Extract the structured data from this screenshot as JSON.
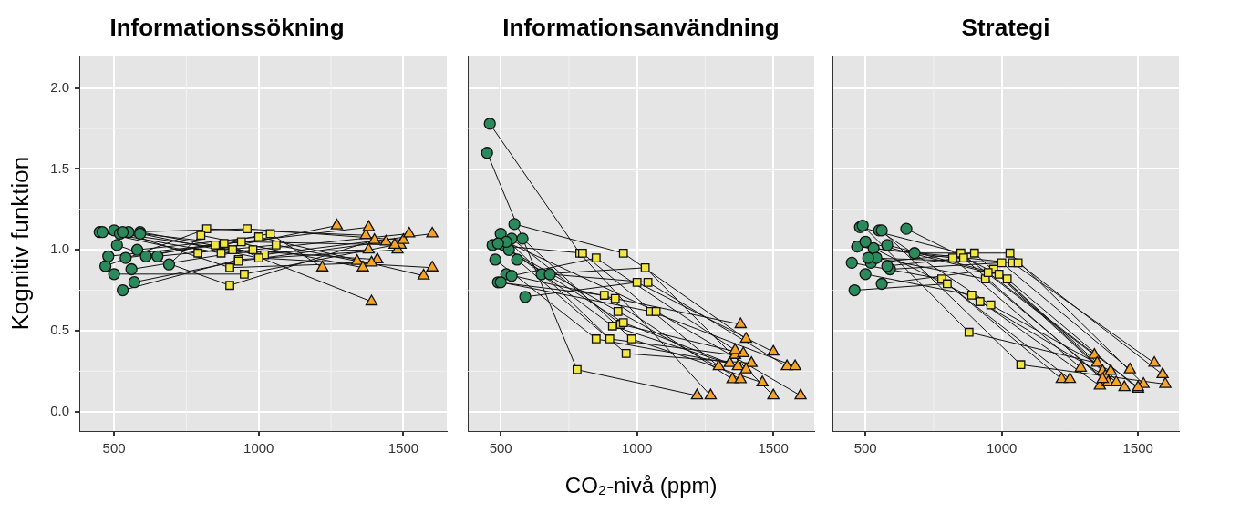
{
  "chart_data": [
    {
      "type": "scatter",
      "title": "Informationssökning",
      "ylabel": "Kognitiv funktion",
      "xlim": [
        380,
        1650
      ],
      "xticks": [
        500,
        1000,
        1500
      ],
      "ylim": [
        -0.12,
        2.2
      ],
      "yticks": [
        {
          "value": 0,
          "label": "0.0"
        },
        0.5,
        {
          "value": 1,
          "label": "1.0"
        },
        1.5,
        {
          "value": 2,
          "label": "2.0"
        }
      ],
      "grid": true,
      "series": [
        {
          "color": "#2a8a5c",
          "marker": "circle",
          "x": [
            450,
            470,
            480,
            500,
            510,
            520,
            530,
            540,
            550,
            560,
            580,
            590,
            610,
            650,
            690,
            460,
            500,
            530,
            570,
            590
          ],
          "y": [
            1.11,
            0.9,
            0.96,
            1.12,
            1.03,
            1.1,
            0.75,
            0.95,
            1.11,
            0.88,
            1.0,
            1.11,
            0.96,
            0.96,
            0.91,
            1.11,
            0.85,
            1.11,
            0.8,
            1.1
          ]
        },
        {
          "color": "#f2e640",
          "marker": "square",
          "x": [
            790,
            820,
            850,
            880,
            900,
            910,
            930,
            940,
            960,
            980,
            1000,
            1020,
            1040,
            1060,
            800,
            870,
            950,
            900,
            930,
            1000
          ],
          "y": [
            0.98,
            1.13,
            1.03,
            1.04,
            0.78,
            1.0,
            0.94,
            1.05,
            1.13,
            1.0,
            1.08,
            0.97,
            1.1,
            1.03,
            1.09,
            0.98,
            0.85,
            0.89,
            0.93,
            0.95
          ]
        },
        {
          "color": "#f5a42a",
          "marker": "triangle",
          "x": [
            1270,
            1370,
            1380,
            1390,
            1400,
            1410,
            1480,
            1490,
            1500,
            1520,
            1570,
            1600,
            1220,
            1340,
            1360,
            1380,
            1470,
            1390,
            1440,
            1600
          ],
          "y": [
            1.15,
            1.09,
            1.14,
            0.68,
            1.06,
            0.94,
            1.0,
            1.03,
            1.06,
            1.1,
            0.84,
            1.1,
            0.89,
            0.93,
            0.89,
            1.0,
            1.03,
            0.92,
            1.05,
            0.89
          ]
        }
      ]
    },
    {
      "type": "scatter",
      "title": "Informationsanvändning",
      "xlabel": "CO₂-nivå (ppm)",
      "xlim": [
        380,
        1650
      ],
      "xticks": [
        500,
        1000,
        1500
      ],
      "ylim": [
        -0.12,
        2.2
      ],
      "yticks": [
        {
          "value": 0,
          "label": "0.0"
        },
        0.5,
        {
          "value": 1,
          "label": "1.0"
        },
        1.5,
        {
          "value": 2,
          "label": "2.0"
        }
      ],
      "grid": true,
      "tick_labels": "x",
      "series": [
        {
          "color": "#2a8a5c",
          "marker": "circle",
          "x": [
            450,
            460,
            470,
            480,
            490,
            500,
            510,
            520,
            530,
            540,
            550,
            560,
            580,
            590,
            650,
            680,
            500,
            520,
            540,
            490
          ],
          "y": [
            1.6,
            1.78,
            1.03,
            0.94,
            0.8,
            1.1,
            1.03,
            0.85,
            1.0,
            1.07,
            1.16,
            0.94,
            1.07,
            0.71,
            0.85,
            0.85,
            0.8,
            1.05,
            0.84,
            1.04
          ]
        },
        {
          "color": "#f2e640",
          "marker": "square",
          "x": [
            780,
            790,
            800,
            850,
            880,
            900,
            910,
            920,
            930,
            940,
            950,
            960,
            980,
            1000,
            1030,
            1040,
            1050,
            1070,
            850,
            950
          ],
          "y": [
            0.26,
            0.98,
            0.98,
            0.45,
            0.72,
            0.45,
            0.53,
            0.7,
            0.62,
            0.54,
            0.98,
            0.36,
            0.45,
            0.8,
            0.89,
            0.8,
            0.62,
            0.62,
            0.95,
            0.55
          ]
        },
        {
          "color": "#f5a42a",
          "marker": "triangle",
          "x": [
            1220,
            1270,
            1300,
            1340,
            1350,
            1360,
            1370,
            1380,
            1380,
            1390,
            1400,
            1420,
            1460,
            1500,
            1500,
            1550,
            1580,
            1600,
            1360,
            1400
          ],
          "y": [
            0.1,
            0.1,
            0.28,
            0.3,
            0.2,
            0.35,
            0.28,
            0.54,
            0.2,
            0.36,
            0.45,
            0.3,
            0.18,
            0.37,
            0.1,
            0.28,
            0.28,
            0.1,
            0.38,
            0.26
          ]
        }
      ]
    },
    {
      "type": "scatter",
      "title": "Strategi",
      "xlim": [
        380,
        1650
      ],
      "xticks": [
        500,
        1000,
        1500
      ],
      "ylim": [
        -0.12,
        2.2
      ],
      "yticks": [
        {
          "value": 0,
          "label": "0.0"
        },
        0.5,
        {
          "value": 1,
          "label": "1.0"
        },
        1.5,
        {
          "value": 2,
          "label": "2.0"
        }
      ],
      "grid": true,
      "tick_labels": "x",
      "series": [
        {
          "color": "#2a8a5c",
          "marker": "circle",
          "x": [
            450,
            460,
            470,
            480,
            490,
            500,
            520,
            530,
            540,
            550,
            560,
            580,
            590,
            650,
            680,
            470,
            510,
            560,
            580,
            500
          ],
          "y": [
            0.92,
            0.75,
            1.02,
            1.14,
            1.15,
            0.85,
            0.92,
            1.01,
            0.95,
            1.12,
            0.79,
            1.03,
            0.88,
            1.13,
            0.98,
            1.02,
            0.95,
            1.12,
            0.9,
            1.05
          ]
        },
        {
          "color": "#f2e640",
          "marker": "square",
          "x": [
            780,
            800,
            820,
            850,
            880,
            890,
            900,
            920,
            940,
            960,
            970,
            990,
            1000,
            1020,
            1030,
            1040,
            1060,
            1070,
            860,
            950
          ],
          "y": [
            0.82,
            0.79,
            0.95,
            0.98,
            0.49,
            0.72,
            0.98,
            0.68,
            0.82,
            0.66,
            0.88,
            0.85,
            0.92,
            0.82,
            0.98,
            0.92,
            0.92,
            0.29,
            0.95,
            0.86
          ]
        },
        {
          "color": "#f5a42a",
          "marker": "triangle",
          "x": [
            1220,
            1250,
            1290,
            1340,
            1350,
            1360,
            1370,
            1380,
            1390,
            1400,
            1420,
            1450,
            1470,
            1500,
            1520,
            1560,
            1590,
            1600,
            1370,
            1500
          ],
          "y": [
            0.2,
            0.2,
            0.27,
            0.35,
            0.3,
            0.16,
            0.25,
            0.22,
            0.18,
            0.25,
            0.18,
            0.15,
            0.26,
            0.14,
            0.17,
            0.3,
            0.23,
            0.17,
            0.2,
            0.15
          ]
        }
      ]
    }
  ]
}
